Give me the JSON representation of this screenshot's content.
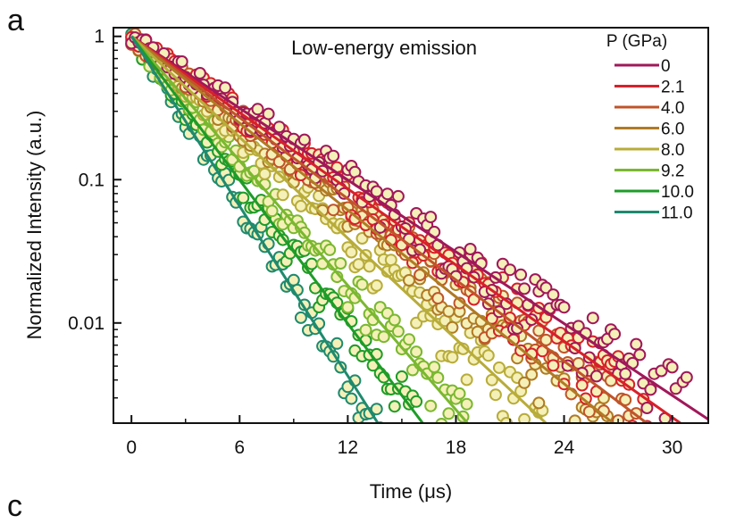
{
  "panel_labels": {
    "main": "a",
    "next": "c"
  },
  "chart_data": {
    "type": "scatter",
    "title": "Low-energy emission",
    "xlabel": "Time (μs)",
    "ylabel": "Normalized Intensity (a.u.)",
    "xlim": [
      -1,
      32
    ],
    "ylim": [
      0.002,
      1.15
    ],
    "yscale": "log",
    "x_ticks": [
      0,
      6,
      12,
      18,
      24,
      30
    ],
    "x_tick_labels": [
      "0",
      "6",
      "12",
      "18",
      "24",
      "30"
    ],
    "y_ticks": [
      1,
      0.1,
      0.01
    ],
    "y_tick_labels": [
      "1",
      "0.1",
      "0.01"
    ],
    "grid": false,
    "legend_title": "P (GPa)",
    "legend_position": "top-right",
    "marker_style": "open circles with pale yellow fill, solid fit lines",
    "marker_fill": "#f5f0b8",
    "series": [
      {
        "name": "0",
        "color": "#a0185a",
        "lifetime_us": 5.2,
        "x_max": 31.0
      },
      {
        "name": "2.1",
        "color": "#d8202a",
        "lifetime_us": 4.9,
        "x_max": 29.5
      },
      {
        "name": "4.0",
        "color": "#c0542a",
        "lifetime_us": 4.6,
        "x_max": 28.0
      },
      {
        "name": "6.0",
        "color": "#b07a24",
        "lifetime_us": 4.3,
        "x_max": 26.5
      },
      {
        "name": "8.0",
        "color": "#b8ac3a",
        "lifetime_us": 3.7,
        "x_max": 23.0
      },
      {
        "name": "9.2",
        "color": "#7ab830",
        "lifetime_us": 3.0,
        "x_max": 19.0
      },
      {
        "name": "10.0",
        "color": "#1e9c28",
        "lifetime_us": 2.6,
        "x_max": 16.0
      },
      {
        "name": "11.0",
        "color": "#1e8a6e",
        "lifetime_us": 2.2,
        "x_max": 14.0
      }
    ]
  }
}
